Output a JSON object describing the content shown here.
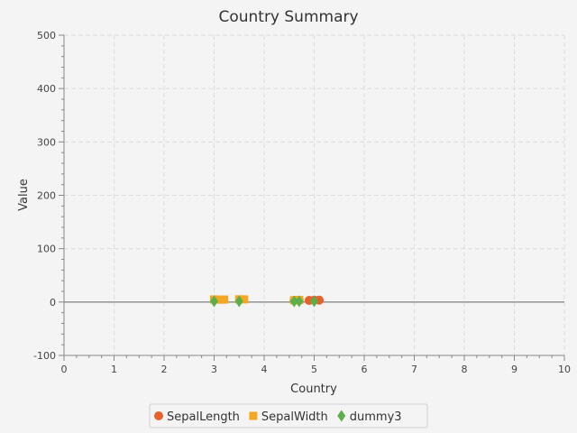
{
  "chart_data": {
    "type": "scatter",
    "title": "Country Summary",
    "xlabel": "Country",
    "ylabel": "Value",
    "xlim": [
      0,
      10
    ],
    "ylim": [
      -100,
      500
    ],
    "xticks": [
      0,
      1,
      2,
      3,
      4,
      5,
      6,
      7,
      8,
      9,
      10
    ],
    "yticks": [
      -100,
      0,
      100,
      200,
      300,
      400,
      500
    ],
    "grid": true,
    "legend_position": "bottom-center",
    "series": [
      {
        "name": "SepalLength",
        "marker": "circle",
        "color": "#e8602c",
        "points": [
          [
            4.9,
            3.0
          ],
          [
            4.7,
            3.2
          ],
          [
            4.6,
            3.1
          ],
          [
            5.0,
            3.6
          ],
          [
            5.1,
            3.5
          ]
        ]
      },
      {
        "name": "SepalWidth",
        "marker": "square",
        "color": "#f5a623",
        "points": [
          [
            3.0,
            4.9
          ],
          [
            3.2,
            4.7
          ],
          [
            3.1,
            4.6
          ],
          [
            3.6,
            5.0
          ],
          [
            3.5,
            5.1
          ],
          [
            4.6,
            3.5
          ],
          [
            4.7,
            4.0
          ]
        ]
      },
      {
        "name": "dummy3",
        "marker": "diamond",
        "color": "#5bb04a",
        "points": [
          [
            3.0,
            1.4
          ],
          [
            3.5,
            1.4
          ],
          [
            4.6,
            1.3
          ],
          [
            4.7,
            1.5
          ],
          [
            5.0,
            1.4
          ]
        ]
      }
    ]
  }
}
